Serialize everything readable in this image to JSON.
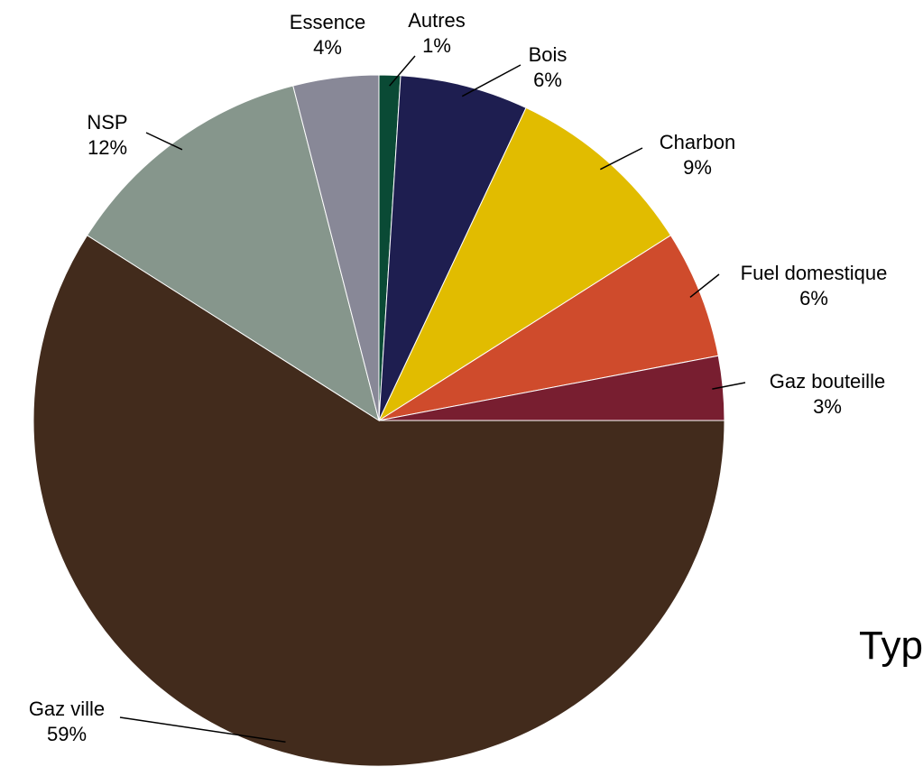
{
  "chart_data": {
    "type": "pie",
    "title": "",
    "truncated_text": "Typ",
    "slices": [
      {
        "label": "Autres",
        "value": 1,
        "value_label": "1%",
        "color": "#0a4a35"
      },
      {
        "label": "Bois",
        "value": 6,
        "value_label": "6%",
        "color": "#1e1e50"
      },
      {
        "label": "Charbon",
        "value": 9,
        "value_label": "9%",
        "color": "#e1bc00"
      },
      {
        "label": "Fuel domestique",
        "value": 6,
        "value_label": "6%",
        "color": "#cf4b2c"
      },
      {
        "label": "Gaz bouteille",
        "value": 3,
        "value_label": "3%",
        "color": "#781e30"
      },
      {
        "label": "Gaz ville",
        "value": 59,
        "value_label": "59%",
        "color": "#422b1c"
      },
      {
        "label": "NSP",
        "value": 12,
        "value_label": "12%",
        "color": "#86968c"
      },
      {
        "label": "Essence",
        "value": 4,
        "value_label": "4%",
        "color": "#888897"
      }
    ],
    "legend": "none",
    "start_angle": "12 o'clock",
    "direction": "clockwise"
  }
}
